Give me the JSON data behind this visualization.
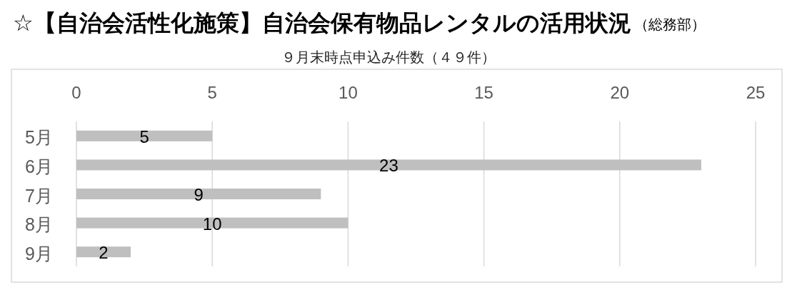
{
  "chart_data": {
    "type": "bar",
    "orientation": "horizontal",
    "title": "☆【自治会活性化施策】自治会保有物品レンタルの活用状況",
    "subtitle": "９月末時点申込み件数（４９件）",
    "annotations": [
      "（総務部）"
    ],
    "categories": [
      "5月",
      "6月",
      "7月",
      "8月",
      "9月"
    ],
    "values": [
      5,
      23,
      9,
      10,
      2
    ],
    "color": "#bfbfbf",
    "xlim": [
      0,
      25
    ],
    "xticks": [
      0,
      5,
      10,
      15,
      20,
      25
    ],
    "grid": "x",
    "data_labels": true
  }
}
